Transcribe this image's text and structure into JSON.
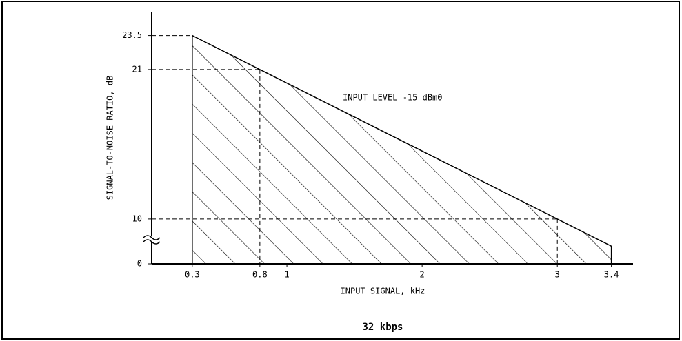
{
  "chart_data": {
    "type": "area",
    "title": "32 kbps",
    "xlabel": "INPUT SIGNAL, kHz",
    "ylabel": "SIGNAL-TO-NOISE RATIO, dB",
    "annotation": "INPUT LEVEL -15 dBm0",
    "x": [
      0.3,
      0.8,
      3,
      3.4
    ],
    "values": [
      23.5,
      21,
      10,
      8
    ],
    "color": "#000000",
    "hatch": true,
    "axis_break": true,
    "xlim": [
      0,
      3.56
    ],
    "xticks": [
      0.3,
      0.8,
      1,
      2,
      3,
      3.4
    ],
    "ylim": [
      6.7,
      25
    ],
    "yticks": [
      0,
      10,
      21,
      23.5
    ]
  }
}
